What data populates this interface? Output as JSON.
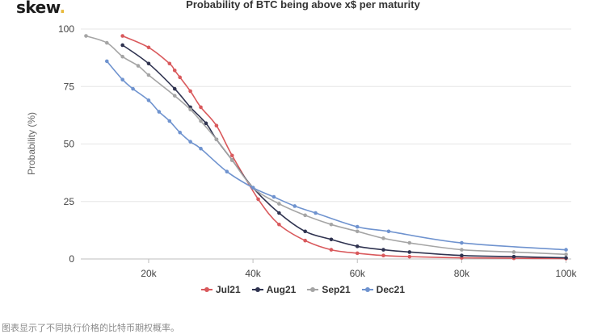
{
  "logo": {
    "text": "skew",
    "dot": "."
  },
  "caption": "图表显示了不同执行价格的比特币期权概率。",
  "chart_data": {
    "type": "line",
    "title": "Probability of BTC being above x$ per maturity",
    "ylabel": "Probability (%)",
    "xlabel": "",
    "xlim": [
      7000,
      101000
    ],
    "ylim": [
      0,
      100
    ],
    "x_ticks": [
      20000,
      40000,
      60000,
      80000,
      100000
    ],
    "x_tick_labels": [
      "20k",
      "40k",
      "60k",
      "80k",
      "100k"
    ],
    "y_ticks": [
      0,
      25,
      50,
      75,
      100
    ],
    "y_tick_labels": [
      "0",
      "25",
      "50",
      "75",
      "100"
    ],
    "grid": "horizontal",
    "legend_position": "bottom",
    "series": [
      {
        "name": "Jul21",
        "color": "#d9595c",
        "points": [
          [
            15000,
            97
          ],
          [
            20000,
            92
          ],
          [
            24000,
            85
          ],
          [
            25000,
            82
          ],
          [
            26000,
            79
          ],
          [
            28000,
            73
          ],
          [
            30000,
            66
          ],
          [
            33000,
            58
          ],
          [
            36000,
            45
          ],
          [
            41000,
            26
          ],
          [
            45000,
            15
          ],
          [
            50000,
            8
          ],
          [
            55000,
            4
          ],
          [
            60000,
            2.5
          ],
          [
            65000,
            1.5
          ],
          [
            70000,
            1
          ],
          [
            80000,
            0.5
          ],
          [
            90000,
            0.3
          ],
          [
            100000,
            0.2
          ]
        ]
      },
      {
        "name": "Aug21",
        "color": "#2f3350",
        "points": [
          [
            15000,
            93
          ],
          [
            20000,
            85
          ],
          [
            25000,
            74
          ],
          [
            28000,
            66
          ],
          [
            31000,
            59
          ],
          [
            33000,
            52
          ],
          [
            36000,
            43
          ],
          [
            40000,
            31
          ],
          [
            45000,
            20
          ],
          [
            50000,
            12
          ],
          [
            55000,
            8.5
          ],
          [
            60000,
            5.5
          ],
          [
            65000,
            4
          ],
          [
            70000,
            3
          ],
          [
            80000,
            1.5
          ],
          [
            90000,
            1
          ],
          [
            100000,
            0.5
          ]
        ]
      },
      {
        "name": "Sep21",
        "color": "#a5a5a5",
        "points": [
          [
            8000,
            97
          ],
          [
            12000,
            94
          ],
          [
            15000,
            88
          ],
          [
            18000,
            84
          ],
          [
            20000,
            80
          ],
          [
            25000,
            71
          ],
          [
            28000,
            65
          ],
          [
            30000,
            60
          ],
          [
            33000,
            52
          ],
          [
            36000,
            43
          ],
          [
            40000,
            31
          ],
          [
            45000,
            24
          ],
          [
            50000,
            19
          ],
          [
            55000,
            15
          ],
          [
            60000,
            12
          ],
          [
            65000,
            9
          ],
          [
            70000,
            7
          ],
          [
            80000,
            4
          ],
          [
            90000,
            3
          ],
          [
            100000,
            2
          ]
        ]
      },
      {
        "name": "Dec21",
        "color": "#6f93cf",
        "points": [
          [
            12000,
            86
          ],
          [
            15000,
            78
          ],
          [
            17000,
            74
          ],
          [
            20000,
            69
          ],
          [
            22000,
            64
          ],
          [
            24000,
            60
          ],
          [
            26000,
            55
          ],
          [
            28000,
            51
          ],
          [
            30000,
            48
          ],
          [
            35000,
            38
          ],
          [
            40000,
            31
          ],
          [
            44000,
            27
          ],
          [
            48000,
            23
          ],
          [
            52000,
            20
          ],
          [
            60000,
            14
          ],
          [
            66000,
            12
          ],
          [
            80000,
            7
          ],
          [
            100000,
            4
          ]
        ]
      }
    ]
  }
}
